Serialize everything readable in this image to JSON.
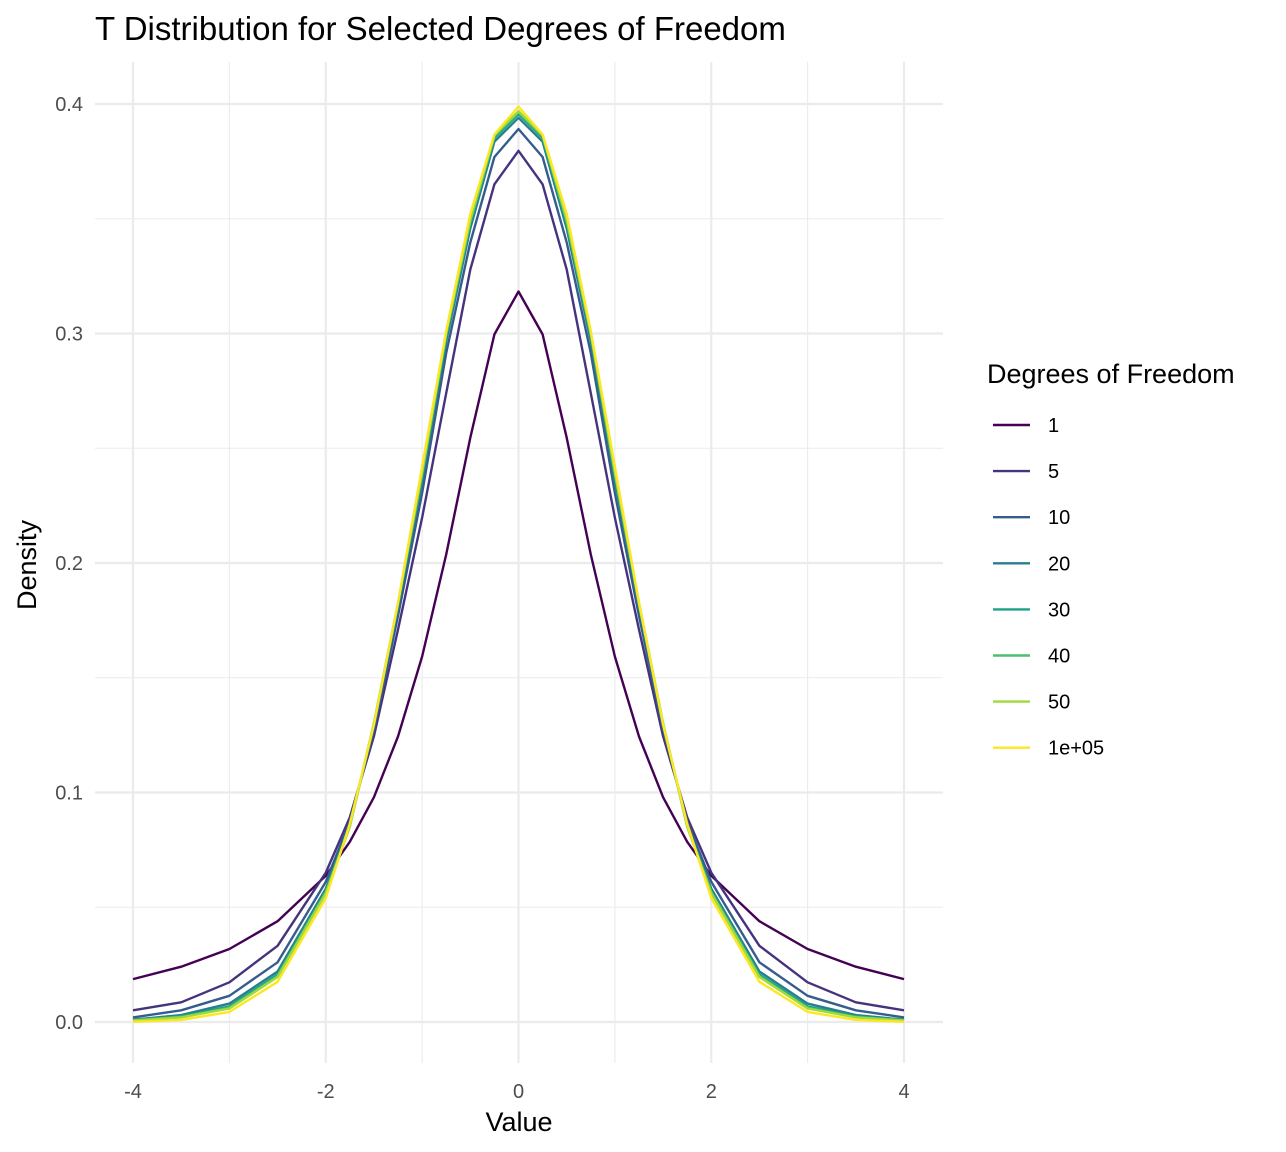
{
  "chart_data": {
    "type": "line",
    "title": "T Distribution for Selected Degrees of Freedom",
    "xlabel": "Value",
    "ylabel": "Density",
    "xlim": [
      -4,
      4
    ],
    "ylim": [
      0,
      0.4
    ],
    "x_ticks": [
      -4,
      -2,
      0,
      2,
      4
    ],
    "y_ticks": [
      0.0,
      0.1,
      0.2,
      0.3,
      0.4
    ],
    "y_tick_labels": [
      "0.0",
      "0.1",
      "0.2",
      "0.3",
      "0.4"
    ],
    "grid": true,
    "legend": {
      "title": "Degrees of Freedom",
      "position": "right"
    },
    "x": [
      -4,
      -3.5,
      -3,
      -2.5,
      -2,
      -1.75,
      -1.5,
      -1.25,
      -1,
      -0.75,
      -0.5,
      -0.25,
      0,
      0.25,
      0.5,
      0.75,
      1,
      1.25,
      1.5,
      1.75,
      2,
      2.5,
      3,
      3.5,
      4
    ],
    "series": [
      {
        "name": "1",
        "color": "#440154",
        "values": [
          0.0187,
          0.0241,
          0.0318,
          0.0439,
          0.0637,
          0.0785,
          0.0979,
          0.1244,
          0.1592,
          0.2037,
          0.2546,
          0.2996,
          0.3183,
          0.2996,
          0.2546,
          0.2037,
          0.1592,
          0.1244,
          0.0979,
          0.0785,
          0.0637,
          0.0439,
          0.0318,
          0.0241,
          0.0187
        ]
      },
      {
        "name": "5",
        "color": "#46337E",
        "values": [
          0.0051,
          0.0086,
          0.0173,
          0.0332,
          0.0651,
          0.0892,
          0.1245,
          0.171,
          0.2197,
          0.274,
          0.3279,
          0.365,
          0.3796,
          0.365,
          0.3279,
          0.274,
          0.2197,
          0.171,
          0.1245,
          0.0892,
          0.0651,
          0.0332,
          0.0173,
          0.0086,
          0.0051
        ]
      },
      {
        "name": "10",
        "color": "#365C8D",
        "values": [
          0.002,
          0.0051,
          0.0114,
          0.026,
          0.0611,
          0.0873,
          0.1274,
          0.1769,
          0.2304,
          0.2915,
          0.3397,
          0.3769,
          0.3891,
          0.3769,
          0.3397,
          0.2915,
          0.2304,
          0.1769,
          0.1274,
          0.0873,
          0.0611,
          0.026,
          0.0114,
          0.0051,
          0.002
        ]
      },
      {
        "name": "20",
        "color": "#277F8E",
        "values": [
          0.001,
          0.003,
          0.008,
          0.022,
          0.0581,
          0.086,
          0.129,
          0.1808,
          0.236,
          0.2966,
          0.3458,
          0.3836,
          0.394,
          0.3836,
          0.3458,
          0.2966,
          0.236,
          0.1808,
          0.129,
          0.086,
          0.0581,
          0.022,
          0.008,
          0.003,
          0.001
        ]
      },
      {
        "name": "30",
        "color": "#1FA187",
        "values": [
          0.0008,
          0.0025,
          0.0068,
          0.0207,
          0.057,
          0.0855,
          0.1297,
          0.1818,
          0.238,
          0.2987,
          0.3479,
          0.3852,
          0.3956,
          0.3852,
          0.3479,
          0.2987,
          0.238,
          0.1818,
          0.1297,
          0.0855,
          0.057,
          0.0207,
          0.0068,
          0.0025,
          0.0008
        ]
      },
      {
        "name": "40",
        "color": "#4AC16D",
        "values": [
          0.0007,
          0.0022,
          0.0062,
          0.02,
          0.0565,
          0.0852,
          0.13,
          0.1823,
          0.2389,
          0.2997,
          0.349,
          0.386,
          0.3964,
          0.386,
          0.349,
          0.2997,
          0.2389,
          0.1823,
          0.13,
          0.0852,
          0.0565,
          0.02,
          0.0062,
          0.0022,
          0.0007
        ]
      },
      {
        "name": "50",
        "color": "#9FDA3A",
        "values": [
          0.0006,
          0.002,
          0.0059,
          0.0196,
          0.0561,
          0.085,
          0.1302,
          0.1826,
          0.2394,
          0.3003,
          0.3496,
          0.3865,
          0.3969,
          0.3865,
          0.3496,
          0.3003,
          0.2394,
          0.1826,
          0.1302,
          0.085,
          0.0561,
          0.0196,
          0.0059,
          0.002,
          0.0006
        ]
      },
      {
        "name": "1e+05",
        "color": "#FDE725",
        "values": [
          0.0001,
          0.0009,
          0.0044,
          0.0175,
          0.054,
          0.0863,
          0.1295,
          0.1826,
          0.242,
          0.3011,
          0.3521,
          0.3867,
          0.3989,
          0.3867,
          0.3521,
          0.3011,
          0.242,
          0.1826,
          0.1295,
          0.0863,
          0.054,
          0.0175,
          0.0044,
          0.0009,
          0.0001
        ]
      }
    ]
  }
}
